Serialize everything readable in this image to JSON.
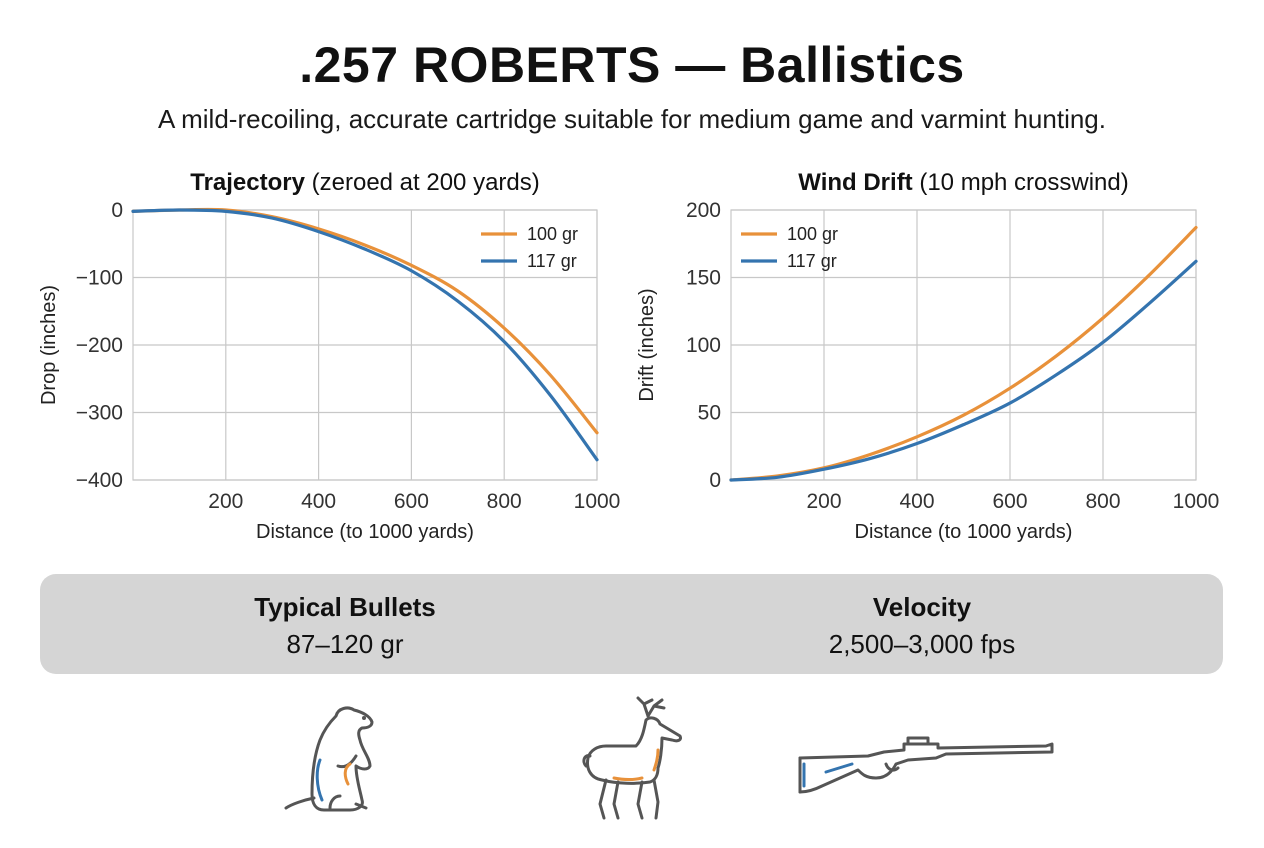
{
  "header": {
    "title": ".257 ROBERTS — Ballistics",
    "subtitle": "A mild-recoiling, accurate cartridge suitable for medium game and varmint hunting."
  },
  "colors": {
    "series_100gr": "#E8913A",
    "series_117gr": "#3474AF",
    "grid": "#c8c8c8",
    "axis_text": "#333333",
    "info_bar_bg": "#d5d5d5",
    "icon_stroke": "#555555"
  },
  "chart_data": [
    {
      "type": "line",
      "title_bold": "Trajectory",
      "title_rest": " (zeroed at 200 yards)",
      "xlabel": "Distance (to 1000 yards)",
      "ylabel": "Drop (inches)",
      "xlim": [
        0,
        1000
      ],
      "ylim": [
        -400,
        0
      ],
      "xticks": [
        200,
        400,
        600,
        800,
        1000
      ],
      "yticks": [
        0,
        -100,
        -200,
        -300,
        -400
      ],
      "ytick_labels": [
        "0",
        "−100",
        "−200",
        "−300",
        "−400"
      ],
      "grid": true,
      "legend_position": "top-right",
      "x": [
        0,
        100,
        200,
        300,
        400,
        500,
        600,
        700,
        800,
        900,
        1000
      ],
      "series": [
        {
          "name": "100 gr",
          "color_key": "series_100gr",
          "values": [
            -2,
            0,
            0,
            -10,
            -28,
            -52,
            -82,
            -120,
            -175,
            -245,
            -330
          ]
        },
        {
          "name": "117 gr",
          "color_key": "series_117gr",
          "values": [
            -2,
            0,
            -2,
            -12,
            -32,
            -58,
            -90,
            -135,
            -195,
            -275,
            -370
          ]
        }
      ]
    },
    {
      "type": "line",
      "title_bold": "Wind Drift",
      "title_rest": " (10 mph crosswind)",
      "xlabel": "Distance (to 1000 yards)",
      "ylabel": "Drift (inches)",
      "xlim": [
        0,
        1000
      ],
      "ylim": [
        0,
        200
      ],
      "xticks": [
        200,
        400,
        600,
        800,
        1000
      ],
      "yticks": [
        0,
        50,
        100,
        150,
        200
      ],
      "ytick_labels": [
        "0",
        "50",
        "100",
        "150",
        "200"
      ],
      "grid": true,
      "legend_position": "top-left",
      "x": [
        0,
        100,
        200,
        300,
        400,
        500,
        600,
        700,
        800,
        900,
        1000
      ],
      "series": [
        {
          "name": "100 gr",
          "color_key": "series_100gr",
          "values": [
            0,
            3,
            9,
            19,
            32,
            48,
            68,
            92,
            120,
            152,
            187
          ]
        },
        {
          "name": "117 gr",
          "color_key": "series_117gr",
          "values": [
            0,
            2,
            8,
            16,
            27,
            41,
            57,
            78,
            102,
            131,
            162
          ]
        }
      ]
    }
  ],
  "info": {
    "bullets_label": "Typical Bullets",
    "bullets_value": "87–120 gr",
    "velocity_label": "Velocity",
    "velocity_value": "2,500–3,000 fps"
  },
  "icons": [
    "groundhog-icon",
    "deer-icon",
    "rifle-icon"
  ]
}
